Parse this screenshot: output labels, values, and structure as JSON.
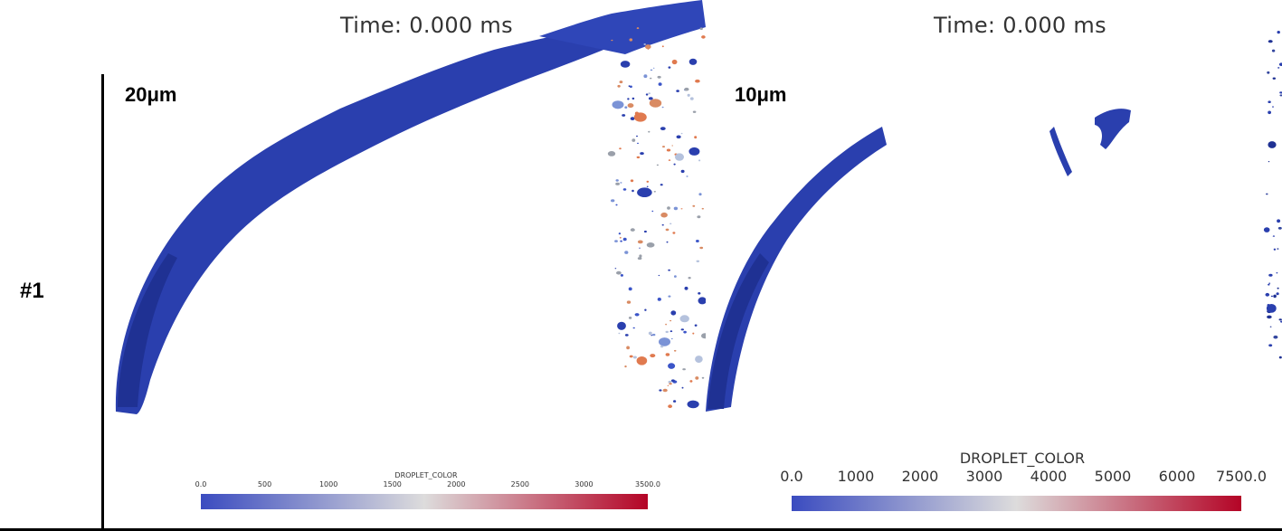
{
  "row_label": "#1",
  "panels": [
    {
      "time_label": "Time: 0.000 ms",
      "resolution_label": "20μm",
      "colorbar": {
        "title": "DROPLET_COLOR",
        "ticks": [
          "0.0",
          "500",
          "1000",
          "1500",
          "2000",
          "2500",
          "3000",
          "3500.0"
        ],
        "range": [
          0,
          3500
        ],
        "colors": [
          "#3b4cc0",
          "#dddcdc",
          "#b40426"
        ]
      }
    },
    {
      "time_label": "Time: 0.000 ms",
      "resolution_label": "10μm",
      "colorbar": {
        "title": "DROPLET_COLOR",
        "ticks": [
          "0.0",
          "1000",
          "2000",
          "3000",
          "4000",
          "5000",
          "6000",
          "7500.0"
        ],
        "range": [
          0,
          7500
        ],
        "colors": [
          "#3b4cc0",
          "#dddcdc",
          "#b40426"
        ]
      }
    }
  ]
}
